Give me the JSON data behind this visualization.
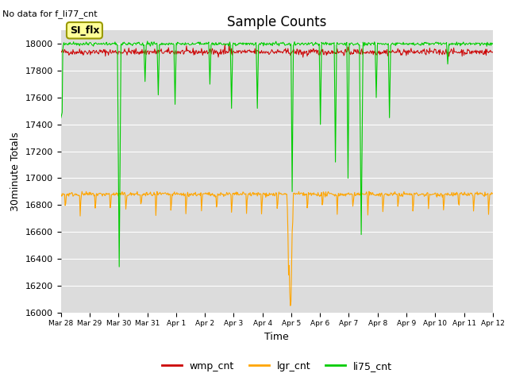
{
  "title": "Sample Counts",
  "xlabel": "Time",
  "ylabel": "30minute Totals",
  "top_left_text": "No data for f_li77_cnt",
  "annotation_text": "SI_flx",
  "ylim": [
    16000,
    18100
  ],
  "yticks": [
    16000,
    16200,
    16400,
    16600,
    16800,
    17000,
    17200,
    17400,
    17600,
    17800,
    18000
  ],
  "background_color": "#dcdcdc",
  "wmp_color": "#cc0000",
  "lgr_color": "#ffa500",
  "li75_color": "#00cc00",
  "legend_entries": [
    "wmp_cnt",
    "lgr_cnt",
    "li75_cnt"
  ],
  "x_tick_labels": [
    "Mar 28",
    "Mar 29",
    "Mar 30",
    "Mar 31",
    "Apr 1",
    "Apr 2",
    "Apr 3",
    "Apr 4",
    "Apr 5",
    "Apr 6",
    "Apr 7",
    "Apr 8",
    "Apr 9",
    "Apr 10",
    "Apr 11",
    "Apr 12"
  ],
  "num_days": 15,
  "wmp_base": 17940,
  "lgr_base": 16880,
  "li75_base": 18000
}
